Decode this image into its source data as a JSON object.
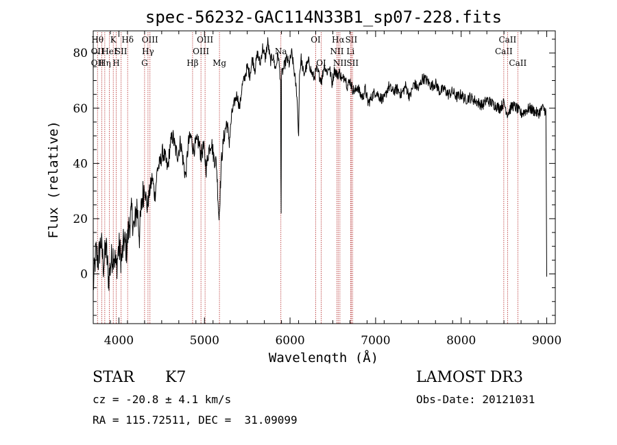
{
  "chart_data": {
    "type": "line",
    "title": "spec-56232-GAC114N33B1_sp07-228.fits",
    "xlabel": "Wavelength (Å)",
    "ylabel": "Flux (relative)",
    "xlim": [
      3700,
      9100
    ],
    "ylim": [
      -18,
      88
    ],
    "xticks": [
      4000,
      5000,
      6000,
      7000,
      8000,
      9000
    ],
    "yticks": [
      0,
      20,
      40,
      60,
      80
    ],
    "grid": false,
    "line_color": "#000000",
    "marker_color": "#b22222",
    "series": [
      {
        "x": [
          3700,
          3730,
          3760,
          3790,
          3820,
          3850,
          3880,
          3910,
          3940,
          3970,
          4000,
          4030,
          4060,
          4090,
          4120,
          4150,
          4180,
          4210,
          4240,
          4270,
          4300,
          4330,
          4360,
          4390,
          4420,
          4450,
          4480,
          4510,
          4540,
          4570,
          4600,
          4630,
          4660,
          4690,
          4720,
          4750,
          4780,
          4810,
          4840,
          4870,
          4900,
          4930,
          4960,
          4990,
          5020,
          5050,
          5080,
          5110,
          5140,
          5170,
          5200,
          5230,
          5260,
          5290,
          5320,
          5350,
          5380,
          5410,
          5440,
          5470,
          5500,
          5530,
          5560,
          5590,
          5620,
          5650,
          5680,
          5710,
          5740,
          5770,
          5800,
          5830,
          5860,
          5890,
          5893,
          5896,
          5900,
          5930,
          5960,
          5990,
          6020,
          6050,
          6080,
          6100,
          6110,
          6130,
          6160,
          6190,
          6220,
          6250,
          6280,
          6310,
          6340,
          6370,
          6400,
          6430,
          6460,
          6490,
          6520,
          6550,
          6580,
          6610,
          6640,
          6670,
          6700,
          6730,
          6760,
          6790,
          6820,
          6850,
          6880,
          6910,
          6940,
          6970,
          7000,
          7050,
          7100,
          7150,
          7200,
          7250,
          7300,
          7350,
          7400,
          7450,
          7500,
          7550,
          7600,
          7650,
          7700,
          7750,
          7800,
          7850,
          7900,
          7950,
          8000,
          8050,
          8100,
          8150,
          8200,
          8250,
          8300,
          8350,
          8400,
          8450,
          8500,
          8540,
          8560,
          8600,
          8650,
          8700,
          8750,
          8800,
          8850,
          8900,
          8950,
          8990,
          9000
        ],
        "y": [
          -5,
          8,
          5,
          12,
          3,
          10,
          -2,
          5,
          8,
          2,
          10,
          5,
          12,
          9,
          18,
          22,
          16,
          25,
          14,
          27,
          32,
          24,
          30,
          35,
          28,
          38,
          40,
          44,
          42,
          38,
          47,
          50,
          45,
          43,
          48,
          41,
          35,
          47,
          50,
          45,
          47,
          48,
          43,
          46,
          38,
          45,
          48,
          42,
          40,
          20,
          42,
          50,
          55,
          48,
          58,
          62,
          65,
          60,
          68,
          71,
          75,
          72,
          78,
          74,
          80,
          76,
          82,
          78,
          84,
          77,
          79,
          74,
          80,
          70,
          35,
          22,
          72,
          75,
          78,
          76,
          80,
          73,
          65,
          50,
          72,
          78,
          72,
          75,
          77,
          73,
          71,
          74,
          72,
          70,
          76,
          73,
          75,
          69,
          74,
          72,
          73,
          70,
          72,
          68,
          70,
          67,
          66,
          68,
          65,
          64,
          67,
          62,
          63,
          65,
          66,
          64,
          63,
          68,
          66,
          67,
          65,
          68,
          64,
          69,
          67,
          71,
          70,
          68,
          69,
          66,
          67,
          65,
          66,
          64,
          65,
          63,
          64,
          63,
          62,
          61,
          63,
          62,
          61,
          60,
          62,
          58,
          59,
          61,
          60,
          58,
          59,
          60,
          59,
          58,
          60,
          59,
          -1
        ]
      }
    ],
    "lines": [
      {
        "x": 3750,
        "labels": [
          {
            "text": "Hθ",
            "row": 1
          },
          {
            "text": "OII",
            "row": 2
          },
          {
            "text": "OII",
            "row": 3
          }
        ]
      },
      {
        "x": 3800,
        "labels": []
      },
      {
        "x": 3835,
        "labels": [
          {
            "text": "Hη",
            "row": 3
          }
        ]
      },
      {
        "x": 3889,
        "labels": [
          {
            "text": "HeI",
            "row": 2
          }
        ]
      },
      {
        "x": 3934,
        "labels": [
          {
            "text": "K",
            "row": 1
          }
        ]
      },
      {
        "x": 3968,
        "labels": [
          {
            "text": "H",
            "row": 3
          }
        ]
      },
      {
        "x": 4026,
        "labels": [
          {
            "text": "SII",
            "row": 2
          }
        ]
      },
      {
        "x": 4102,
        "labels": [
          {
            "text": "Hδ",
            "row": 1
          }
        ]
      },
      {
        "x": 4300,
        "labels": [
          {
            "text": "G",
            "row": 3
          }
        ]
      },
      {
        "x": 4340,
        "labels": [
          {
            "text": "Hγ",
            "row": 2
          }
        ]
      },
      {
        "x": 4363,
        "labels": [
          {
            "text": "OIII",
            "row": 1
          }
        ]
      },
      {
        "x": 4861,
        "labels": [
          {
            "text": "Hβ",
            "row": 3
          }
        ]
      },
      {
        "x": 4959,
        "labels": [
          {
            "text": "OIII",
            "row": 2
          }
        ]
      },
      {
        "x": 5007,
        "labels": [
          {
            "text": "OIII",
            "row": 1
          }
        ]
      },
      {
        "x": 5175,
        "labels": [
          {
            "text": "Mg",
            "row": 3
          }
        ]
      },
      {
        "x": 5893,
        "labels": [
          {
            "text": "Na",
            "row": 2
          }
        ]
      },
      {
        "x": 6300,
        "labels": [
          {
            "text": "OI",
            "row": 1
          }
        ]
      },
      {
        "x": 6364,
        "labels": [
          {
            "text": "OI",
            "row": 3
          }
        ]
      },
      {
        "x": 6548,
        "labels": [
          {
            "text": "NII",
            "row": 2
          }
        ]
      },
      {
        "x": 6563,
        "labels": [
          {
            "text": "Hα",
            "row": 1
          }
        ]
      },
      {
        "x": 6583,
        "labels": [
          {
            "text": "NII",
            "row": 3
          }
        ]
      },
      {
        "x": 6707,
        "labels": [
          {
            "text": "Li",
            "row": 2
          }
        ]
      },
      {
        "x": 6716,
        "labels": [
          {
            "text": "SII",
            "row": 1
          }
        ]
      },
      {
        "x": 6731,
        "labels": [
          {
            "text": "SII",
            "row": 3
          }
        ]
      },
      {
        "x": 8498,
        "labels": [
          {
            "text": "CaII",
            "row": 2
          }
        ]
      },
      {
        "x": 8542,
        "labels": [
          {
            "text": "CaII",
            "row": 1
          }
        ]
      },
      {
        "x": 8662,
        "labels": [
          {
            "text": "CaII",
            "row": 3
          }
        ]
      }
    ]
  },
  "info": {
    "class": "STAR",
    "subclass": "K7",
    "survey": "LAMOST DR3",
    "cz": "cz = -20.8 ± 4.1 km/s",
    "obs_date": "Obs-Date: 20121031",
    "coords": "RA = 115.72511, DEC =  31.09099"
  }
}
